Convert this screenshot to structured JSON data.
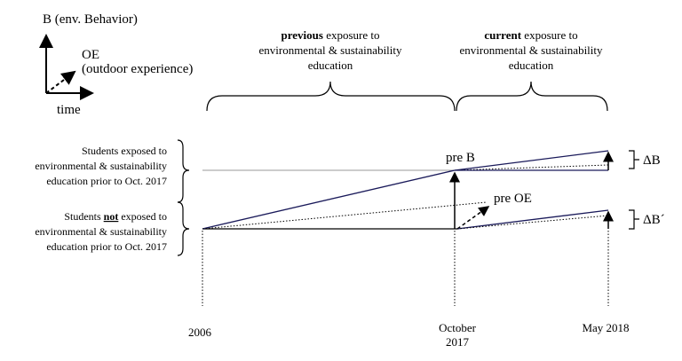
{
  "legend": {
    "y_axis": "B (env. Behavior)",
    "dashed_1": "OE",
    "dashed_2": "(outdoor experience)",
    "x_axis": "time"
  },
  "previous": {
    "line1_bold": "previous",
    "line1_rest": " exposure to",
    "line2": "environmental & sustainability",
    "line3": "education"
  },
  "current": {
    "line1_bold": "current",
    "line1_rest": " exposure to",
    "line2": "environmental & sustainability",
    "line3": "education"
  },
  "group_exposed": {
    "line1": "Students exposed to",
    "line2": "environmental & sustainability",
    "line3": "education prior to Oct. 2017"
  },
  "group_not_exposed": {
    "line1_start": "Students ",
    "line1_bold": "not",
    "line1_end": " exposed to",
    "line2": "environmental & sustainability",
    "line3": "education prior to Oct. 2017"
  },
  "annotations": {
    "pre_b": "pre B",
    "pre_oe": "pre OE",
    "delta_b": "ΔB",
    "delta_b_prime": "ΔB´"
  },
  "timeline": {
    "start": "2006",
    "mid_1": "October",
    "mid_2": "2017",
    "end": "May 2018"
  }
}
